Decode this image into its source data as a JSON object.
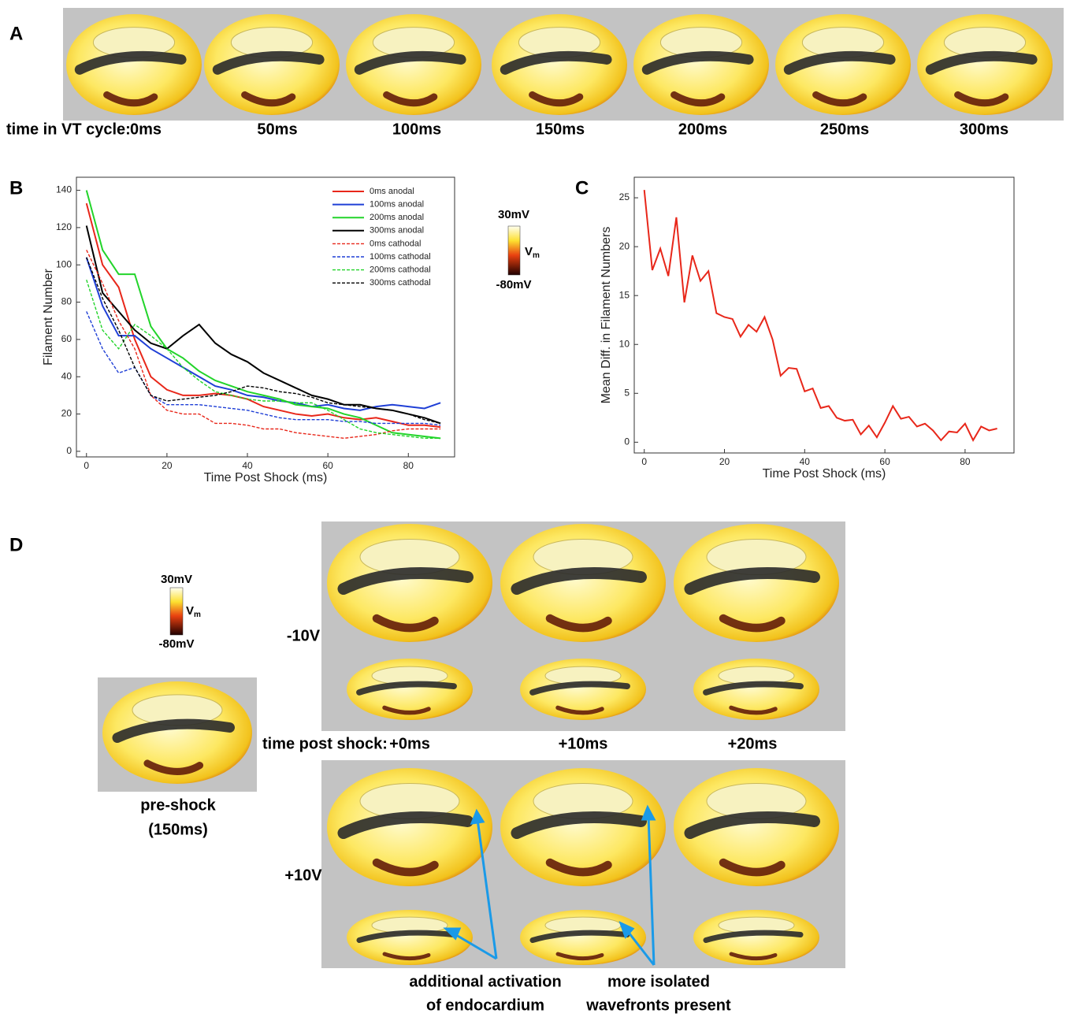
{
  "chart_data": [
    {
      "type": "line",
      "x_label": "Time Post Shock (ms)",
      "y_label": "Filament Number",
      "x": [
        0,
        4,
        8,
        12,
        16,
        20,
        24,
        28,
        32,
        36,
        40,
        44,
        48,
        52,
        56,
        60,
        64,
        68,
        72,
        76,
        80,
        84,
        88
      ],
      "xlim": [
        -2.5,
        91.5
      ],
      "ylim": [
        -3,
        147
      ],
      "xticks": [
        0,
        20,
        40,
        60,
        80
      ],
      "yticks": [
        0,
        20,
        40,
        60,
        80,
        100,
        120,
        140
      ],
      "legend": "upper right",
      "series": [
        {
          "name": "0ms anodal",
          "color": "#e8271a",
          "linestyle": "solid",
          "values": [
            133,
            100,
            88,
            60,
            40,
            33,
            30,
            30,
            31,
            30,
            28,
            24,
            22,
            20,
            19,
            20,
            18,
            17,
            18,
            16,
            14,
            14,
            13
          ]
        },
        {
          "name": "100ms anodal",
          "color": "#1f3fd6",
          "linestyle": "solid",
          "values": [
            104,
            78,
            62,
            62,
            55,
            50,
            45,
            40,
            35,
            33,
            30,
            29,
            27,
            26,
            24,
            25,
            23,
            22,
            24,
            25,
            24,
            23,
            26
          ]
        },
        {
          "name": "200ms anodal",
          "color": "#22d42a",
          "linestyle": "solid",
          "values": [
            140,
            108,
            95,
            95,
            67,
            55,
            50,
            43,
            38,
            35,
            32,
            30,
            28,
            25,
            24,
            23,
            20,
            18,
            14,
            10,
            9,
            8,
            7
          ]
        },
        {
          "name": "300ms anodal",
          "color": "#000000",
          "linestyle": "solid",
          "values": [
            121,
            85,
            75,
            65,
            58,
            55,
            62,
            68,
            58,
            52,
            48,
            42,
            38,
            34,
            30,
            28,
            25,
            25,
            23,
            22,
            20,
            18,
            15
          ]
        },
        {
          "name": "0ms cathodal",
          "color": "#e8271a",
          "linestyle": "dashed",
          "values": [
            108,
            90,
            70,
            55,
            30,
            22,
            20,
            20,
            15,
            15,
            14,
            12,
            12,
            10,
            9,
            8,
            7,
            8,
            9,
            11,
            12,
            12,
            12
          ]
        },
        {
          "name": "100ms cathodal",
          "color": "#1f3fd6",
          "linestyle": "dashed",
          "values": [
            75,
            55,
            42,
            45,
            30,
            25,
            25,
            25,
            24,
            23,
            22,
            20,
            18,
            17,
            17,
            17,
            16,
            16,
            15,
            15,
            15,
            15,
            14
          ]
        },
        {
          "name": "200ms cathodal",
          "color": "#22d42a",
          "linestyle": "dashed",
          "values": [
            92,
            65,
            55,
            68,
            62,
            55,
            45,
            38,
            32,
            30,
            28,
            27,
            27,
            26,
            26,
            22,
            17,
            12,
            10,
            9,
            8,
            7,
            7
          ]
        },
        {
          "name": "300ms cathodal",
          "color": "#000000",
          "linestyle": "dashed",
          "values": [
            104,
            82,
            65,
            45,
            30,
            27,
            28,
            29,
            30,
            32,
            35,
            34,
            32,
            31,
            29,
            26,
            25,
            24,
            23,
            22,
            20,
            17,
            15
          ]
        }
      ]
    },
    {
      "type": "line",
      "x_label": "Time Post Shock (ms)",
      "y_label": "Mean Diff. in Filament Numbers",
      "x": [
        0,
        2,
        4,
        6,
        8,
        10,
        12,
        14,
        16,
        18,
        20,
        22,
        24,
        26,
        28,
        30,
        32,
        34,
        36,
        38,
        40,
        42,
        44,
        46,
        48,
        50,
        52,
        54,
        56,
        58,
        60,
        62,
        64,
        66,
        68,
        70,
        72,
        74,
        76,
        78,
        80,
        82,
        84,
        86,
        88
      ],
      "xlim": [
        -2.5,
        92.2
      ],
      "ylim": [
        -1.1,
        27.1
      ],
      "xticks": [
        0,
        20,
        40,
        60,
        80
      ],
      "yticks": [
        0,
        5,
        10,
        15,
        20,
        25
      ],
      "series": [
        {
          "color": "#e8271a",
          "linestyle": "solid",
          "values": [
            25.8,
            17.6,
            19.8,
            17.0,
            23.0,
            14.3,
            19.1,
            16.5,
            17.5,
            13.2,
            12.8,
            12.6,
            10.8,
            12.0,
            11.3,
            12.8,
            10.5,
            6.8,
            7.6,
            7.5,
            5.2,
            5.5,
            3.5,
            3.7,
            2.5,
            2.2,
            2.3,
            0.8,
            1.7,
            0.5,
            2.0,
            3.7,
            2.4,
            2.6,
            1.6,
            1.9,
            1.2,
            0.2,
            1.1,
            1.0,
            1.9,
            0.2,
            1.6,
            1.2,
            1.4
          ]
        }
      ]
    }
  ],
  "figure": {
    "panel_labels": [
      "A",
      "B",
      "C",
      "D"
    ],
    "panel_a": {
      "row_label": "time in VT cycle:",
      "times": [
        "0ms",
        "50ms",
        "100ms",
        "150ms",
        "200ms",
        "250ms",
        "300ms"
      ]
    },
    "colorbar": {
      "max_label": "30mV",
      "min_label": "-80mV",
      "symbol": "V",
      "subscript": "m"
    },
    "panel_d": {
      "voltages": [
        "-10V",
        "+10V"
      ],
      "row_label": "time post shock:",
      "times": [
        "+0ms",
        "+10ms",
        "+20ms"
      ],
      "pre_shock": [
        "pre-shock",
        "(150ms)"
      ],
      "annotations": [
        [
          "additional activation",
          "of endocardium"
        ],
        [
          "more isolated",
          "wavefronts present"
        ]
      ]
    }
  }
}
